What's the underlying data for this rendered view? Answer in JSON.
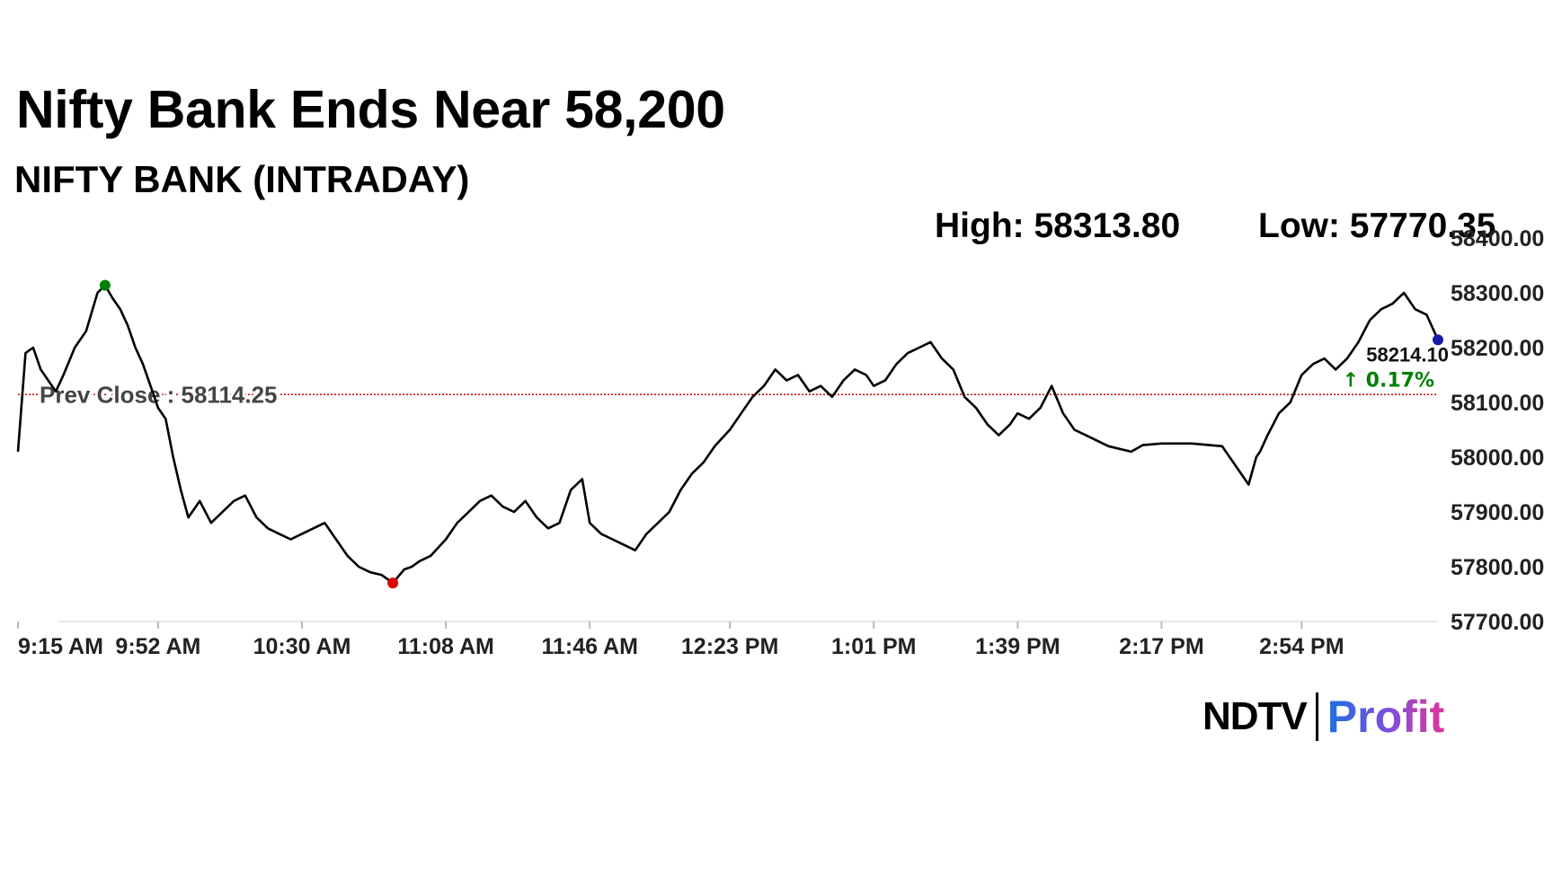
{
  "headline": "Nifty Bank Ends Near 58,200",
  "subtitle": "NIFTY BANK (INTRADAY)",
  "high_label": "High: 58313.80",
  "low_label": "Low: 57770.35",
  "logo": {
    "ndtv": "NDTV",
    "profit": "Profit"
  },
  "colors": {
    "line": "#000000",
    "high_marker": "#008000",
    "low_marker": "#e00000",
    "last_marker": "#1a1aaa",
    "prev_close": "#cc0000",
    "change_up": "#008000"
  },
  "chart_data": {
    "type": "line",
    "title": "NIFTY BANK (INTRADAY)",
    "ylim": [
      57700,
      58400
    ],
    "y_ticks": [
      "58400.00",
      "58300.00",
      "58200.00",
      "58100.00",
      "58000.00",
      "57900.00",
      "57800.00",
      "57700.00"
    ],
    "x_ticks": [
      "9:15 AM",
      "9:52 AM",
      "10:30 AM",
      "11:08 AM",
      "11:46 AM",
      "12:23 PM",
      "1:01 PM",
      "1:39 PM",
      "2:17 PM",
      "2:54 PM"
    ],
    "prev_close": 58114.25,
    "prev_close_label": "Prev Close : 58114.25",
    "high": 58313.8,
    "low": 57770.35,
    "last_value_label": "58214.10",
    "change_label": "↑ 0.17%",
    "series": [
      {
        "x": [
          "9:15 AM",
          "9:17 AM",
          "9:19 AM",
          "9:21 AM",
          "9:23 AM",
          "9:25 AM",
          "9:27 AM",
          "9:30 AM",
          "9:33 AM",
          "9:36 AM",
          "9:38 AM",
          "9:40 AM",
          "9:42 AM",
          "9:44 AM",
          "9:46 AM",
          "9:48 AM",
          "9:50 AM",
          "9:52 AM",
          "9:54 AM",
          "9:56 AM",
          "9:58 AM",
          "10:00 AM",
          "10:03 AM",
          "10:06 AM",
          "10:09 AM",
          "10:12 AM",
          "10:15 AM",
          "10:18 AM",
          "10:21 AM",
          "10:24 AM",
          "10:27 AM",
          "10:30 AM",
          "10:33 AM",
          "10:36 AM",
          "10:39 AM",
          "10:42 AM",
          "10:45 AM",
          "10:48 AM",
          "10:51 AM",
          "10:54 AM",
          "10:57 AM",
          "10:59 AM",
          "11:01 AM",
          "11:04 AM",
          "11:08 AM",
          "11:11 AM",
          "11:14 AM",
          "11:17 AM",
          "11:20 AM",
          "11:23 AM",
          "11:26 AM",
          "11:29 AM",
          "11:32 AM",
          "11:35 AM",
          "11:38 AM",
          "11:41 AM",
          "11:44 AM",
          "11:46 AM",
          "11:49 AM",
          "11:52 AM",
          "11:55 AM",
          "11:58 AM",
          "12:01 PM",
          "12:04 PM",
          "12:07 PM",
          "12:10 PM",
          "12:13 PM",
          "12:16 PM",
          "12:19 PM",
          "12:23 PM",
          "12:26 PM",
          "12:29 PM",
          "12:32 PM",
          "12:35 PM",
          "12:38 PM",
          "12:41 PM",
          "12:44 PM",
          "12:47 PM",
          "12:50 PM",
          "12:53 PM",
          "12:56 PM",
          "12:59 PM",
          "1:01 PM",
          "1:04 PM",
          "1:07 PM",
          "1:10 PM",
          "1:13 PM",
          "1:16 PM",
          "1:19 PM",
          "1:22 PM",
          "1:25 PM",
          "1:28 PM",
          "1:31 PM",
          "1:34 PM",
          "1:37 PM",
          "1:39 PM",
          "1:42 PM",
          "1:45 PM",
          "1:48 PM",
          "1:51 PM",
          "1:54 PM",
          "1:57 PM",
          "2:00 PM",
          "2:03 PM",
          "2:06 PM",
          "2:09 PM",
          "2:12 PM",
          "2:17 PM",
          "2:25 PM",
          "2:33 PM",
          "2:40 PM",
          "2:42 PM",
          "2:43 PM",
          "2:45 PM",
          "2:48 PM",
          "2:51 PM",
          "2:54 PM",
          "2:57 PM",
          "3:00 PM",
          "3:03 PM",
          "3:06 PM",
          "3:09 PM",
          "3:12 PM",
          "3:15 PM",
          "3:18 PM",
          "3:21 PM",
          "3:24 PM",
          "3:27 PM",
          "3:30 PM"
        ],
        "values": [
          58010,
          58190,
          58200,
          58160,
          58140,
          58120,
          58150,
          58200,
          58230,
          58300,
          58313.8,
          58290,
          58270,
          58240,
          58200,
          58170,
          58130,
          58090,
          58070,
          58000,
          57940,
          57890,
          57920,
          57880,
          57900,
          57920,
          57930,
          57890,
          57870,
          57860,
          57850,
          57860,
          57870,
          57880,
          57850,
          57820,
          57800,
          57790,
          57785,
          57770.35,
          57795,
          57800,
          57810,
          57820,
          57850,
          57880,
          57900,
          57920,
          57930,
          57910,
          57900,
          57920,
          57890,
          57870,
          57880,
          57940,
          57960,
          57880,
          57860,
          57850,
          57840,
          57830,
          57860,
          57880,
          57900,
          57940,
          57970,
          57990,
          58020,
          58050,
          58080,
          58110,
          58130,
          58160,
          58140,
          58150,
          58120,
          58130,
          58110,
          58140,
          58160,
          58150,
          58130,
          58140,
          58170,
          58190,
          58200,
          58210,
          58180,
          58160,
          58110,
          58090,
          58060,
          58040,
          58060,
          58080,
          58070,
          58090,
          58130,
          58080,
          58050,
          58040,
          58030,
          58020,
          58015,
          58010,
          58022,
          58025,
          58025,
          58020,
          57950,
          58000,
          58010,
          58040,
          58080,
          58100,
          58150,
          58170,
          58180,
          58160,
          58180,
          58210,
          58250,
          58270,
          58280,
          58300,
          58270,
          58260,
          58214.1
        ]
      }
    ],
    "x_range": [
      "9:15 AM",
      "3:30 PM"
    ]
  }
}
